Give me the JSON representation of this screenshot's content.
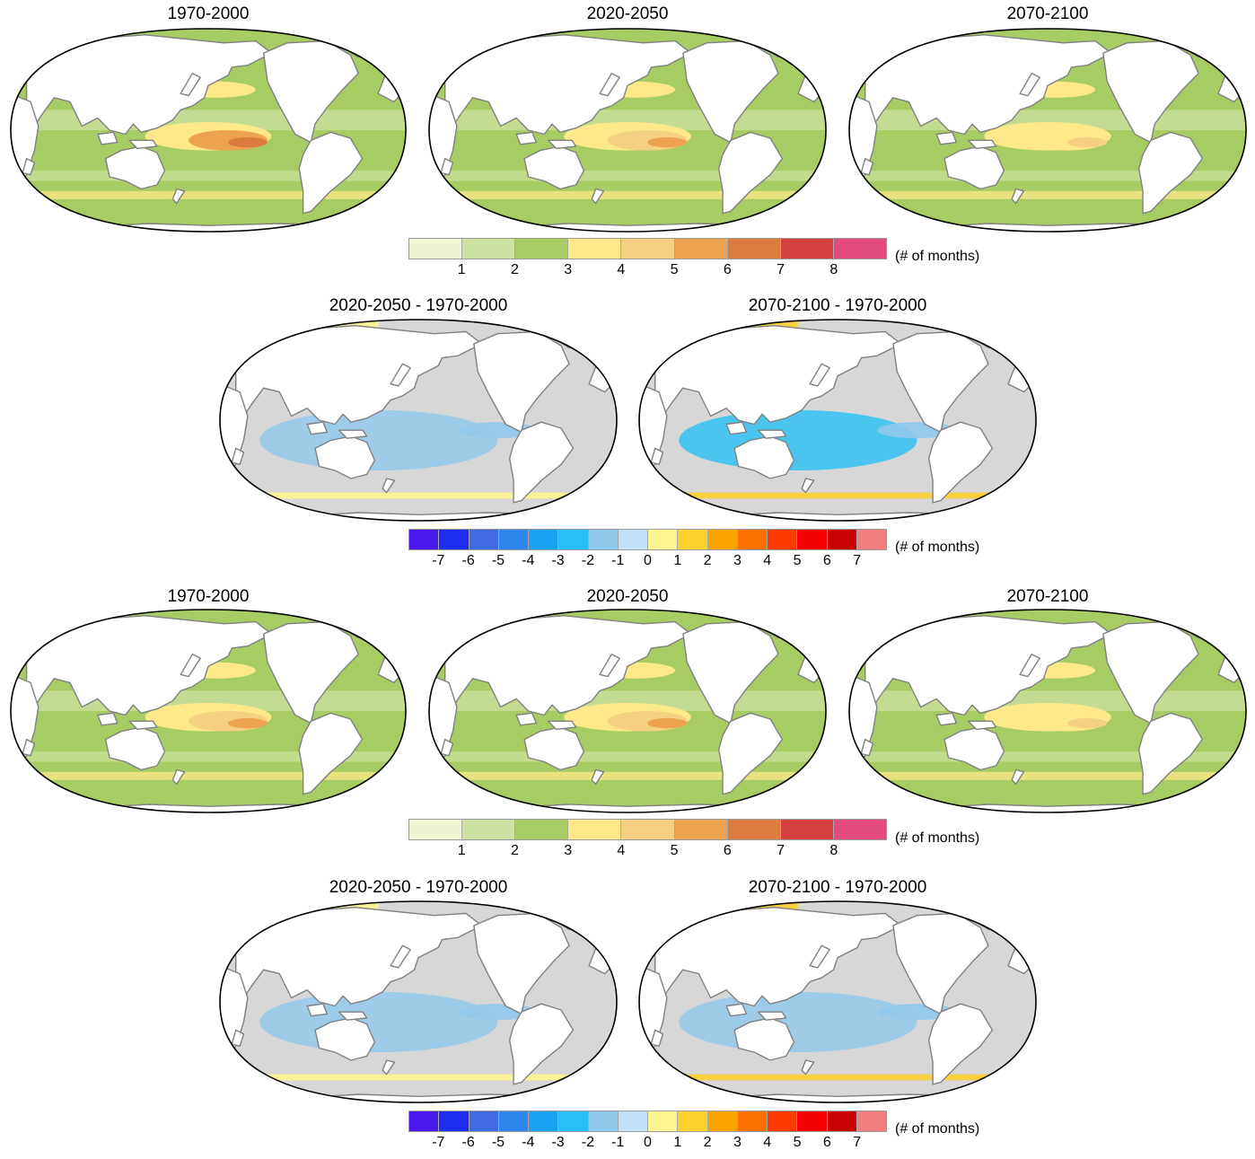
{
  "absolute_colorbar": {
    "colors": [
      "#eef4d4",
      "#cde2a0",
      "#a8cc64",
      "#fde98a",
      "#f5cf82",
      "#eca24e",
      "#dc7b3e",
      "#d34040",
      "#e34b7e"
    ],
    "ticks": [
      "1",
      "2",
      "3",
      "4",
      "5",
      "6",
      "7",
      "8"
    ],
    "units": "(# of months)"
  },
  "difference_colorbar": {
    "colors": [
      "#4b18ee",
      "#1e2cf0",
      "#3f6ae0",
      "#2f86ea",
      "#1aa2f0",
      "#26c0f6",
      "#90c8ec",
      "#c2e0f6",
      "#fef590",
      "#fed22e",
      "#fda300",
      "#fc7100",
      "#fb3b00",
      "#f50000",
      "#c80000",
      "#f07f7f"
    ],
    "ticks": [
      "-7",
      "-6",
      "-5",
      "-4",
      "-3",
      "-2",
      "-1",
      "0",
      "1",
      "2",
      "3",
      "4",
      "5",
      "6",
      "7"
    ],
    "units": "(# of months)"
  },
  "colors": {
    "land": "#ffffff",
    "coast": "#808080",
    "frame": "#000000",
    "no_change": "#d7d7d7"
  },
  "rows": [
    {
      "kind": "absolute",
      "panels": [
        {
          "title": "1970-2000",
          "base": 2,
          "warm_pool": 6
        },
        {
          "title": "2020-2050",
          "base": 2,
          "warm_pool": 5
        },
        {
          "title": "2070-2100",
          "base": 2,
          "warm_pool": 4
        }
      ]
    },
    {
      "kind": "difference",
      "panels": [
        {
          "title": "2020-2050 - 1970-2000",
          "decrease": -1,
          "increase": 1
        },
        {
          "title": "2070-2100 - 1970-2000",
          "decrease": -2,
          "increase": 2
        }
      ]
    },
    {
      "kind": "absolute",
      "panels": [
        {
          "title": "1970-2000",
          "base": 2,
          "warm_pool": 5
        },
        {
          "title": "2020-2050",
          "base": 2,
          "warm_pool": 5
        },
        {
          "title": "2070-2100",
          "base": 2,
          "warm_pool": 4
        }
      ]
    },
    {
      "kind": "difference",
      "panels": [
        {
          "title": "2020-2050 - 1970-2000",
          "decrease": -1,
          "increase": 1
        },
        {
          "title": "2070-2100 - 1970-2000",
          "decrease": -1,
          "increase": 2
        }
      ]
    }
  ]
}
